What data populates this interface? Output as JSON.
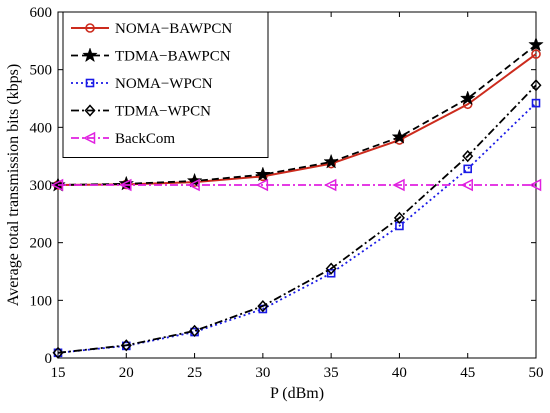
{
  "chart_data": {
    "type": "line",
    "title": "",
    "xlabel": "P (dBm)",
    "ylabel": "Average total transmission bits (kbps)",
    "x": [
      15,
      20,
      25,
      30,
      35,
      40,
      45,
      50
    ],
    "xlim": [
      15,
      50
    ],
    "ylim": [
      0,
      600
    ],
    "xticks": [
      15,
      20,
      25,
      30,
      35,
      40,
      45,
      50
    ],
    "yticks": [
      0,
      100,
      200,
      300,
      400,
      500,
      600
    ],
    "grid": false,
    "legend": "top-left",
    "series": [
      {
        "name": "NOMA−BAWPCN",
        "values": [
          300,
          301,
          305,
          315,
          337,
          378,
          440,
          527
        ],
        "color": "#cc2b1d",
        "linestyle": "solid",
        "marker": "circle"
      },
      {
        "name": "TDMA−BAWPCN",
        "values": [
          300,
          302,
          307,
          318,
          340,
          383,
          450,
          543
        ],
        "color": "#000000",
        "linestyle": "dashed",
        "marker": "star"
      },
      {
        "name": "NOMA−WPCN",
        "values": [
          9,
          21,
          45,
          85,
          147,
          229,
          328,
          442
        ],
        "color": "#1a1ae6",
        "linestyle": "dotted",
        "marker": "square"
      },
      {
        "name": "TDMA−WPCN",
        "values": [
          9,
          22,
          47,
          90,
          155,
          243,
          350,
          473
        ],
        "color": "#000000",
        "linestyle": "dashdot",
        "marker": "diamond"
      },
      {
        "name": "BackCom",
        "values": [
          300,
          300,
          300,
          300,
          300,
          300,
          300,
          300
        ],
        "color": "#e020e0",
        "linestyle": "dashdot",
        "marker": "triangle-left"
      }
    ]
  }
}
